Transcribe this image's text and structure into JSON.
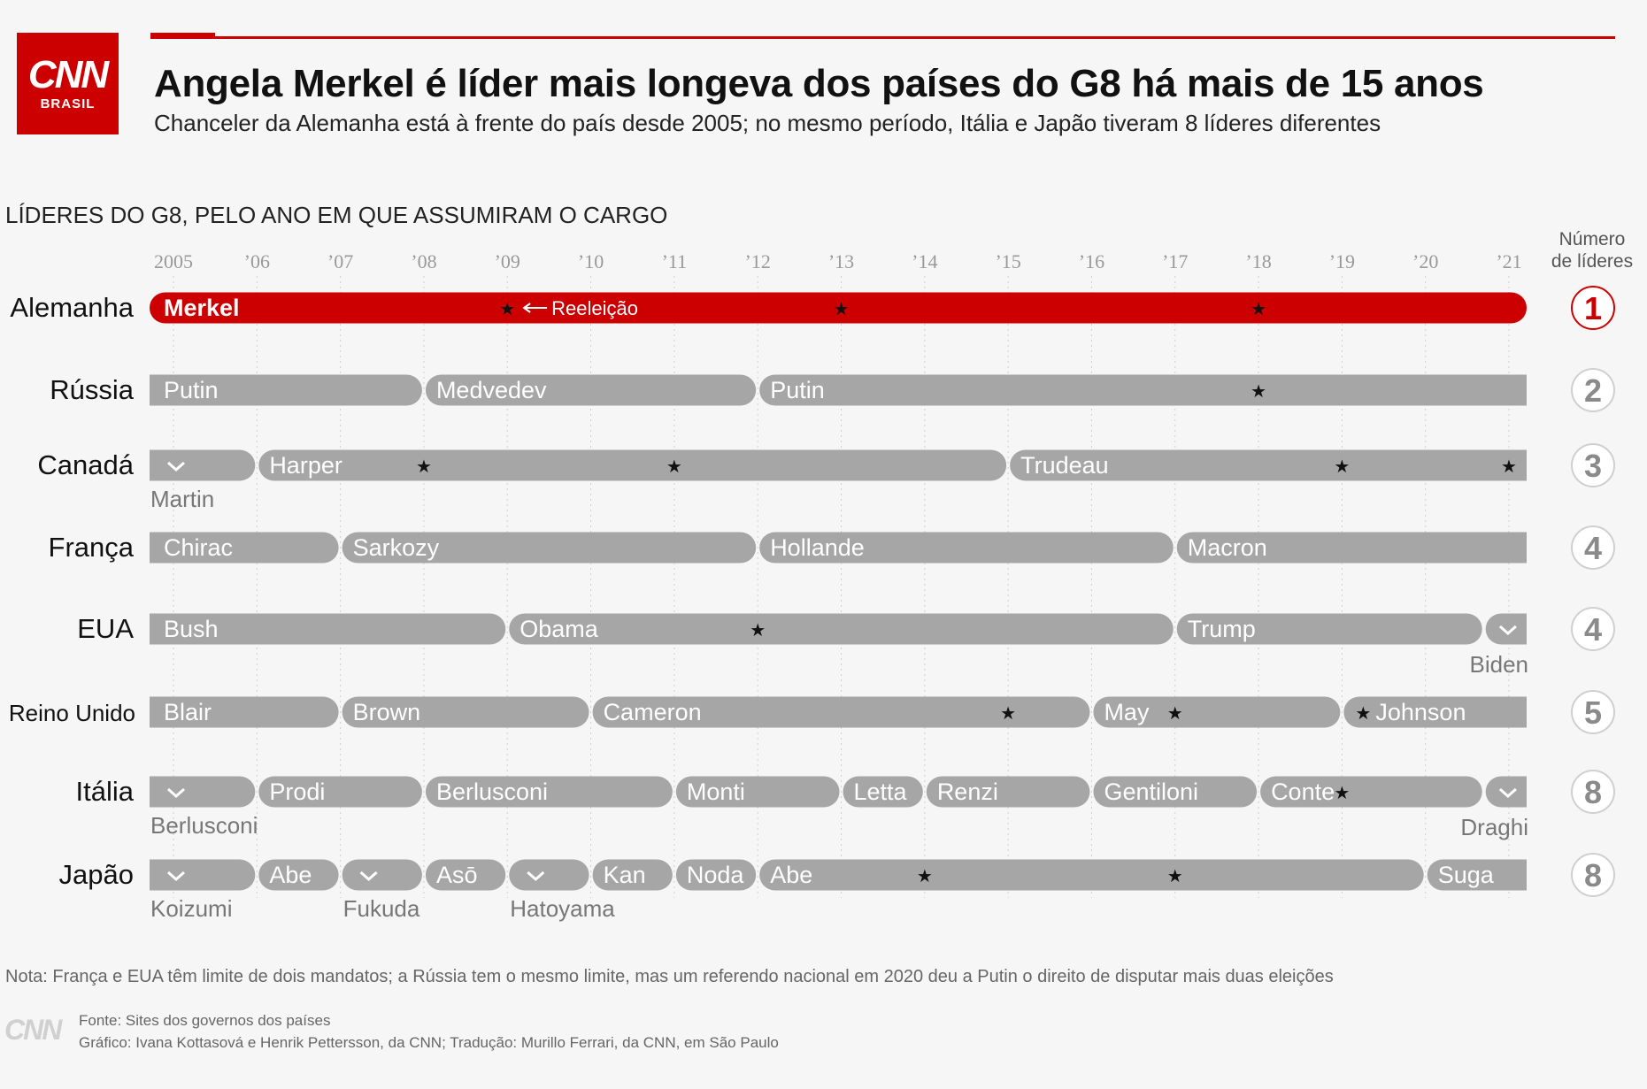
{
  "header": {
    "logo_main": "CNN",
    "logo_sub": "BRASIL",
    "title": "Angela Merkel é líder mais longeva dos países do G8 há mais de 15 anos",
    "subtitle": "Chanceler da Alemanha está à frente do país desde 2005; no mesmo período, Itália e Japão tiveram 8 líderes diferentes"
  },
  "section_title": "LÍDERES DO G8, PELO ANO EM QUE ASSUMIRAM O CARGO",
  "count_header": [
    "Número",
    "de líderes"
  ],
  "colors": {
    "accent": "#cc0000",
    "bar": "#a6a6a6",
    "text": "#111111",
    "muted": "#555555"
  },
  "chart_data": {
    "type": "timeline",
    "x_range": [
      2005,
      2021.3
    ],
    "x_ticks": [
      {
        "value": 2005,
        "label": "2005"
      },
      {
        "value": 2006,
        "label": "’06"
      },
      {
        "value": 2007,
        "label": "’07"
      },
      {
        "value": 2008,
        "label": "’08"
      },
      {
        "value": 2009,
        "label": "’09"
      },
      {
        "value": 2010,
        "label": "’10"
      },
      {
        "value": 2011,
        "label": "’11"
      },
      {
        "value": 2012,
        "label": "’12"
      },
      {
        "value": 2013,
        "label": "’13"
      },
      {
        "value": 2014,
        "label": "’14"
      },
      {
        "value": 2015,
        "label": "’15"
      },
      {
        "value": 2016,
        "label": "’16"
      },
      {
        "value": 2017,
        "label": "’17"
      },
      {
        "value": 2018,
        "label": "’18"
      },
      {
        "value": 2019,
        "label": "’19"
      },
      {
        "value": 2020,
        "label": "’20"
      },
      {
        "value": 2021,
        "label": "’21"
      }
    ],
    "annotation": {
      "text": "Reeleição",
      "row": "Alemanha",
      "x": 2009.2
    },
    "rows": [
      {
        "country": "Alemanha",
        "count": "1",
        "highlight": true,
        "leaders": [
          {
            "name": "Merkel",
            "start": 2005,
            "end": 2021.2
          }
        ],
        "stars": [
          2009,
          2013,
          2018
        ]
      },
      {
        "country": "Rússia",
        "count": "2",
        "leaders": [
          {
            "name": "Putin",
            "start": 2005,
            "end": 2008
          },
          {
            "name": "Medvedev",
            "start": 2008,
            "end": 2012
          },
          {
            "name": "Putin",
            "start": 2012,
            "end": 2021.2
          }
        ],
        "stars": [
          2018
        ]
      },
      {
        "country": "Canadá",
        "count": "3",
        "leaders": [
          {
            "name": "Martin",
            "start": 2005,
            "end": 2006,
            "below": true
          },
          {
            "name": "Harper",
            "start": 2006,
            "end": 2015
          },
          {
            "name": "Trudeau",
            "start": 2015,
            "end": 2021.2
          }
        ],
        "stars": [
          2008,
          2011,
          2019,
          2021
        ]
      },
      {
        "country": "França",
        "count": "4",
        "leaders": [
          {
            "name": "Chirac",
            "start": 2005,
            "end": 2007
          },
          {
            "name": "Sarkozy",
            "start": 2007,
            "end": 2012
          },
          {
            "name": "Hollande",
            "start": 2012,
            "end": 2017
          },
          {
            "name": "Macron",
            "start": 2017,
            "end": 2021.2
          }
        ],
        "stars": []
      },
      {
        "country": "EUA",
        "count": "4",
        "leaders": [
          {
            "name": "Bush",
            "start": 2005,
            "end": 2009
          },
          {
            "name": "Obama",
            "start": 2009,
            "end": 2017
          },
          {
            "name": "Trump",
            "start": 2017,
            "end": 2020.7
          },
          {
            "name": "Biden",
            "start": 2020.7,
            "end": 2021.2,
            "below": true,
            "align": "right"
          }
        ],
        "stars": [
          2012
        ]
      },
      {
        "country": "Reino Unido",
        "count": "5",
        "small_label": true,
        "leaders": [
          {
            "name": "Blair",
            "start": 2005,
            "end": 2007
          },
          {
            "name": "Brown",
            "start": 2007,
            "end": 2010
          },
          {
            "name": "Cameron",
            "start": 2010,
            "end": 2016
          },
          {
            "name": "May",
            "start": 2016,
            "end": 2019
          },
          {
            "name": "Johnson",
            "start": 2019,
            "end": 2021.2,
            "star_prefix": true
          }
        ],
        "stars": [
          2015,
          2017
        ]
      },
      {
        "country": "Itália",
        "count": "8",
        "leaders": [
          {
            "name": "Berlusconi",
            "start": 2005,
            "end": 2006,
            "below": true
          },
          {
            "name": "Prodi",
            "start": 2006,
            "end": 2008
          },
          {
            "name": "Berlusconi",
            "start": 2008,
            "end": 2011
          },
          {
            "name": "Monti",
            "start": 2011,
            "end": 2013
          },
          {
            "name": "Letta",
            "start": 2013,
            "end": 2014
          },
          {
            "name": "Renzi",
            "start": 2014,
            "end": 2016
          },
          {
            "name": "Gentiloni",
            "start": 2016,
            "end": 2018
          },
          {
            "name": "Conte",
            "start": 2018,
            "end": 2020.7
          },
          {
            "name": "Draghi",
            "start": 2020.7,
            "end": 2021.2,
            "below": true,
            "align": "right"
          }
        ],
        "stars": [
          2019
        ]
      },
      {
        "country": "Japão",
        "count": "8",
        "leaders": [
          {
            "name": "Koizumi",
            "start": 2005,
            "end": 2006,
            "below": true
          },
          {
            "name": "Abe",
            "start": 2006,
            "end": 2007
          },
          {
            "name": "Fukuda",
            "start": 2007,
            "end": 2008,
            "below": true
          },
          {
            "name": "Asō",
            "start": 2008,
            "end": 2009
          },
          {
            "name": "Hatoyama",
            "start": 2009,
            "end": 2010,
            "below": true
          },
          {
            "name": "Kan",
            "start": 2010,
            "end": 2011
          },
          {
            "name": "Noda",
            "start": 2011,
            "end": 2012
          },
          {
            "name": "Abe",
            "start": 2012,
            "end": 2020
          },
          {
            "name": "Suga",
            "start": 2020,
            "end": 2021.2
          }
        ],
        "stars": [
          2014,
          2017
        ]
      }
    ]
  },
  "note": "Nota: França e EUA têm limite de dois mandatos; a Rússia tem o mesmo limite, mas um referendo nacional em 2020 deu a Putin o direito de disputar mais duas eleições",
  "footer": {
    "logo": "CNN",
    "source": "Fonte: Sites dos governos dos países",
    "credits": "Gráfico: Ivana Kottasová e Henrik Pettersson, da CNN; Tradução: Murillo Ferrari, da CNN, em São Paulo"
  }
}
